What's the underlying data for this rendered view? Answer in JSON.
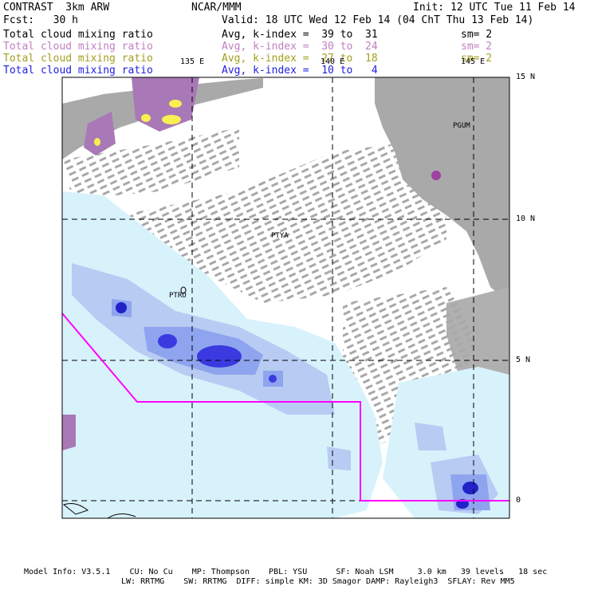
{
  "header": {
    "title": "CONTRAST  3km ARW",
    "center": "NCAR/MMM",
    "init": "Init: 12 UTC Tue 11 Feb 14",
    "fcst": "Fcst:   30 h",
    "valid": "Valid: 18 UTC Wed 12 Feb 14 (04 ChT Thu 13 Feb 14)"
  },
  "fields": [
    {
      "name": "Total cloud mixing ratio",
      "stat": "Avg, k-index =  39 to  31",
      "sm": "sm= 2",
      "color": "#000000"
    },
    {
      "name": "Total cloud mixing ratio",
      "stat": "Avg, k-index =  30 to  24",
      "sm": "sm= 2",
      "color": "#c080c0"
    },
    {
      "name": "Total cloud mixing ratio",
      "stat": "Avg, k-index =  27 to  18",
      "sm": "sm= 2",
      "color": "#a0a020"
    },
    {
      "name": "Total cloud mixing ratio",
      "stat": "Avg, k-index =  10 to   4",
      "sm": "",
      "color": "#2020e0"
    }
  ],
  "map": {
    "lon_labels": [
      "135 E",
      "140 E",
      "145 E"
    ],
    "lat_labels": [
      "15 N",
      "10 N",
      "5 N",
      "0"
    ],
    "stations": [
      "PGUM",
      "PTYA",
      "PTRO"
    ]
  },
  "footer": {
    "line1": "Model Info: V3.5.1    CU: No Cu    MP: Thompson    PBL: YSU      SF: Noah LSM     3.0 km   39 levels   18 sec",
    "line2": "LW: RRTMG    SW: RRTMG  DIFF: simple KM: 3D Smagor DAMP: Rayleigh3  SFLAY: Rev MM5"
  }
}
